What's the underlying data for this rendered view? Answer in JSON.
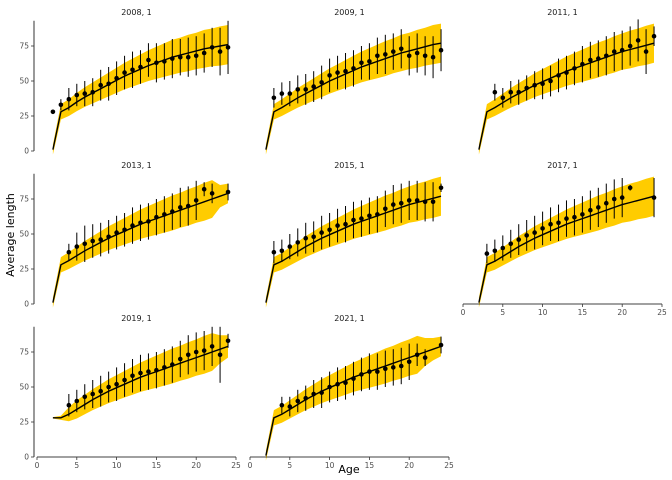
{
  "chart_data": {
    "type": "line",
    "xlabel": "Age",
    "ylabel": "Average length",
    "xlim": [
      0,
      25
    ],
    "ylim": [
      0,
      95
    ],
    "x_ticks": [
      0,
      5,
      10,
      15,
      20,
      25
    ],
    "y_ticks": [
      0,
      25,
      50,
      75
    ],
    "band_color": "#ffcc00",
    "line_color": "#000000",
    "model": {
      "ages": [
        2,
        3,
        4,
        5,
        6,
        7,
        8,
        9,
        10,
        11,
        12,
        13,
        14,
        15,
        16,
        17,
        18,
        19,
        20,
        21,
        22,
        23,
        24
      ]
    },
    "panels": [
      {
        "title": "2008, 1",
        "pred": [
          1,
          28,
          31,
          35,
          38.5,
          41.5,
          44.5,
          47.5,
          50.5,
          53.5,
          56,
          58.5,
          61,
          63,
          65,
          67,
          68.5,
          70,
          71.5,
          73,
          74,
          75,
          76
        ],
        "band_half": [
          3.5,
          5.5,
          6,
          6.5,
          7,
          7.5,
          8,
          8.5,
          9,
          9.5,
          10,
          10.5,
          11,
          11.5,
          12,
          12.5,
          12.5,
          13,
          13,
          13.5,
          13.5,
          14,
          14
        ],
        "obs_ages": [
          2,
          3,
          4,
          5,
          6,
          7,
          8,
          9,
          10,
          11,
          12,
          13,
          14,
          15,
          16,
          17,
          18,
          19,
          20,
          21,
          22,
          23,
          24
        ],
        "obs": [
          28,
          33,
          37,
          40,
          41,
          42,
          47,
          48,
          52,
          56,
          58,
          60,
          65,
          63,
          64,
          66,
          67,
          67,
          68,
          70,
          74,
          71,
          74
        ],
        "obs_err": [
          0,
          4,
          8,
          8,
          9,
          10,
          11,
          12,
          12,
          12,
          13,
          12,
          12,
          14,
          13,
          14,
          13,
          14,
          14,
          14,
          14,
          17,
          19
        ]
      },
      {
        "title": "2009, 1",
        "pred": [
          1,
          28,
          31,
          34.5,
          38,
          41,
          44,
          47,
          50,
          52.5,
          55,
          57.5,
          60,
          62,
          64,
          66,
          68,
          70,
          71.5,
          73,
          74.5,
          76,
          77
        ],
        "band_half": [
          3.5,
          5.5,
          6,
          6.5,
          7,
          7.5,
          8,
          8.5,
          9,
          9.5,
          10,
          10.5,
          11,
          11.5,
          12,
          12.5,
          12.5,
          13,
          13,
          13.5,
          13.5,
          14,
          14
        ],
        "obs_ages": [
          3,
          4,
          5,
          6,
          7,
          8,
          9,
          10,
          11,
          12,
          13,
          14,
          15,
          16,
          17,
          18,
          19,
          20,
          21,
          22,
          23,
          24
        ],
        "obs": [
          38,
          41,
          41,
          44,
          44,
          46,
          49,
          54,
          56,
          57,
          59,
          63,
          64,
          68,
          69,
          71,
          73,
          68,
          70,
          68,
          67,
          72
        ],
        "obs_err": [
          7,
          8,
          9,
          10,
          11,
          11,
          12,
          12,
          12,
          13,
          13,
          12,
          13,
          13,
          14,
          13,
          14,
          14,
          14,
          14,
          15,
          15
        ]
      },
      {
        "title": "2011, 1",
        "pred": [
          1,
          28,
          31,
          34.5,
          38,
          41,
          44,
          47,
          49.5,
          52,
          54.5,
          57,
          59,
          61,
          63,
          65,
          67,
          69,
          71,
          72.5,
          74,
          75.5,
          77
        ],
        "band_half": [
          3.5,
          5.5,
          6,
          6.5,
          7,
          7.5,
          8,
          8.5,
          9,
          9.5,
          10,
          10.5,
          11,
          11.5,
          12,
          12.5,
          12.5,
          13,
          13,
          13.5,
          13.5,
          14,
          14
        ],
        "obs_ages": [
          4,
          5,
          6,
          7,
          8,
          9,
          10,
          11,
          12,
          13,
          14,
          15,
          16,
          17,
          18,
          19,
          20,
          21,
          22,
          23,
          24
        ],
        "obs": [
          42,
          38,
          42,
          42,
          45,
          47,
          48,
          50,
          54,
          56,
          59,
          62,
          65,
          66,
          68,
          71,
          72,
          75,
          79,
          71,
          82
        ],
        "obs_err": [
          6,
          7,
          8,
          9,
          9,
          10,
          11,
          11,
          12,
          12,
          12,
          13,
          13,
          13,
          14,
          14,
          14,
          14,
          15,
          16,
          7
        ]
      },
      {
        "title": "2013, 1",
        "pred": [
          1,
          28,
          31,
          34.5,
          38,
          41,
          44,
          47,
          49.5,
          52,
          54.5,
          57,
          59,
          61,
          63,
          65,
          67,
          69,
          71,
          73,
          75,
          77,
          79
        ],
        "band_half": [
          3.5,
          5.5,
          6,
          6.5,
          7,
          7.5,
          8,
          8.5,
          9,
          9.5,
          10,
          10.5,
          11,
          11.5,
          12,
          12.5,
          12.5,
          13,
          13,
          13.5,
          13.5,
          8,
          7
        ],
        "obs_ages": [
          4,
          5,
          6,
          7,
          8,
          9,
          10,
          11,
          12,
          13,
          14,
          15,
          16,
          17,
          18,
          19,
          20,
          21,
          22,
          24
        ],
        "obs": [
          37,
          41,
          43,
          45,
          46,
          48,
          51,
          53,
          56,
          58,
          59,
          62,
          64,
          66,
          69,
          70,
          74,
          82,
          79,
          80
        ],
        "obs_err": [
          6,
          10,
          13,
          12,
          12,
          12,
          12,
          12,
          13,
          13,
          13,
          13,
          13,
          13,
          14,
          14,
          14,
          5,
          7,
          6
        ]
      },
      {
        "title": "2015, 1",
        "pred": [
          1,
          28,
          30.5,
          34,
          37.5,
          41,
          44,
          47,
          49.5,
          52,
          54.5,
          57,
          59,
          61,
          63,
          65,
          67,
          69,
          71,
          72.5,
          74,
          75.5,
          77
        ],
        "band_half": [
          3.5,
          5.5,
          6,
          6.5,
          7,
          7.5,
          8,
          8.5,
          9,
          9.5,
          10,
          10.5,
          11,
          11.5,
          12,
          12.5,
          12.5,
          13,
          13,
          13.5,
          13.5,
          14,
          14
        ],
        "obs_ages": [
          3,
          4,
          5,
          6,
          7,
          8,
          9,
          10,
          11,
          12,
          13,
          14,
          15,
          16,
          17,
          18,
          19,
          20,
          21,
          22,
          23,
          24
        ],
        "obs": [
          37,
          38,
          41,
          44,
          47,
          48,
          51,
          53,
          56,
          57,
          60,
          61,
          63,
          64,
          68,
          71,
          72,
          74,
          74,
          73,
          73,
          83
        ],
        "obs_err": [
          8,
          8,
          9,
          10,
          11,
          11,
          12,
          12,
          12,
          13,
          13,
          13,
          13,
          13,
          13,
          14,
          14,
          14,
          14,
          14,
          14,
          3
        ]
      },
      {
        "title": "2017, 1",
        "pred": [
          1,
          28,
          30.5,
          34,
          37.5,
          41,
          44,
          47,
          49.5,
          52,
          54.5,
          57,
          59,
          61,
          63,
          65,
          67,
          69,
          71,
          72.5,
          74,
          75.5,
          77
        ],
        "band_half": [
          3.5,
          5.5,
          6,
          6.5,
          7,
          7.5,
          8,
          8.5,
          9,
          9.5,
          10,
          10.5,
          11,
          11.5,
          12,
          12.5,
          12.5,
          13,
          13,
          13.5,
          13.5,
          14,
          14
        ],
        "obs_ages": [
          3,
          4,
          5,
          6,
          7,
          8,
          9,
          10,
          11,
          12,
          13,
          14,
          15,
          16,
          17,
          18,
          19,
          20,
          21,
          24
        ],
        "obs": [
          36,
          38,
          40,
          43,
          46,
          49,
          51,
          54,
          57,
          58,
          61,
          62,
          64,
          67,
          69,
          72,
          75,
          76,
          83,
          76
        ],
        "obs_err": [
          7,
          8,
          9,
          10,
          11,
          11,
          12,
          12,
          12,
          13,
          13,
          13,
          13,
          14,
          14,
          14,
          14,
          14,
          2,
          14
        ]
      },
      {
        "title": "2019, 1",
        "pred": [
          28,
          28,
          30.5,
          34,
          37.5,
          41,
          44,
          47,
          49.5,
          52,
          54.5,
          57,
          59,
          61,
          63,
          65,
          67,
          69,
          71,
          73,
          75,
          77,
          79
        ],
        "band_half": [
          0.5,
          1.5,
          5,
          6.5,
          7,
          7.5,
          8,
          8.5,
          9,
          9.5,
          10,
          10.5,
          11,
          11.5,
          12,
          12.5,
          12.5,
          13,
          13,
          13.5,
          13.5,
          10,
          8
        ],
        "obs_ages": [
          4,
          5,
          6,
          7,
          8,
          9,
          10,
          11,
          12,
          13,
          14,
          15,
          16,
          17,
          18,
          19,
          20,
          21,
          22,
          23,
          24
        ],
        "obs": [
          37,
          40,
          43,
          45,
          47,
          50,
          52,
          55,
          58,
          60,
          61,
          62,
          64,
          66,
          70,
          73,
          75,
          76,
          79,
          73,
          83
        ],
        "obs_err": [
          8,
          8,
          9,
          10,
          11,
          11,
          12,
          12,
          12,
          13,
          13,
          13,
          13,
          13,
          13,
          14,
          14,
          14,
          14,
          20,
          5
        ]
      },
      {
        "title": "2021, 1",
        "pred": [
          1,
          28,
          30.5,
          34,
          37.5,
          41,
          44,
          47,
          49.5,
          52,
          54.5,
          57,
          59,
          61,
          63,
          65,
          67,
          69,
          71,
          73,
          75,
          77,
          79
        ],
        "band_half": [
          3.5,
          5.5,
          6,
          6.5,
          7,
          7.5,
          8,
          8.5,
          9,
          9.5,
          10,
          10.5,
          11,
          11.5,
          12,
          12.5,
          12.5,
          13,
          13,
          13.5,
          10,
          8,
          7
        ],
        "obs_ages": [
          4,
          5,
          6,
          7,
          8,
          9,
          10,
          11,
          12,
          13,
          14,
          15,
          16,
          17,
          18,
          19,
          20,
          21,
          22,
          24
        ],
        "obs": [
          37,
          36,
          40,
          42,
          45,
          46,
          50,
          52,
          53,
          56,
          59,
          61,
          61,
          63,
          64,
          65,
          68,
          73,
          71,
          80
        ],
        "obs_err": [
          6,
          7,
          8,
          9,
          10,
          11,
          11,
          12,
          12,
          12,
          12,
          13,
          13,
          13,
          13,
          13,
          13,
          8,
          6,
          6
        ]
      }
    ]
  }
}
